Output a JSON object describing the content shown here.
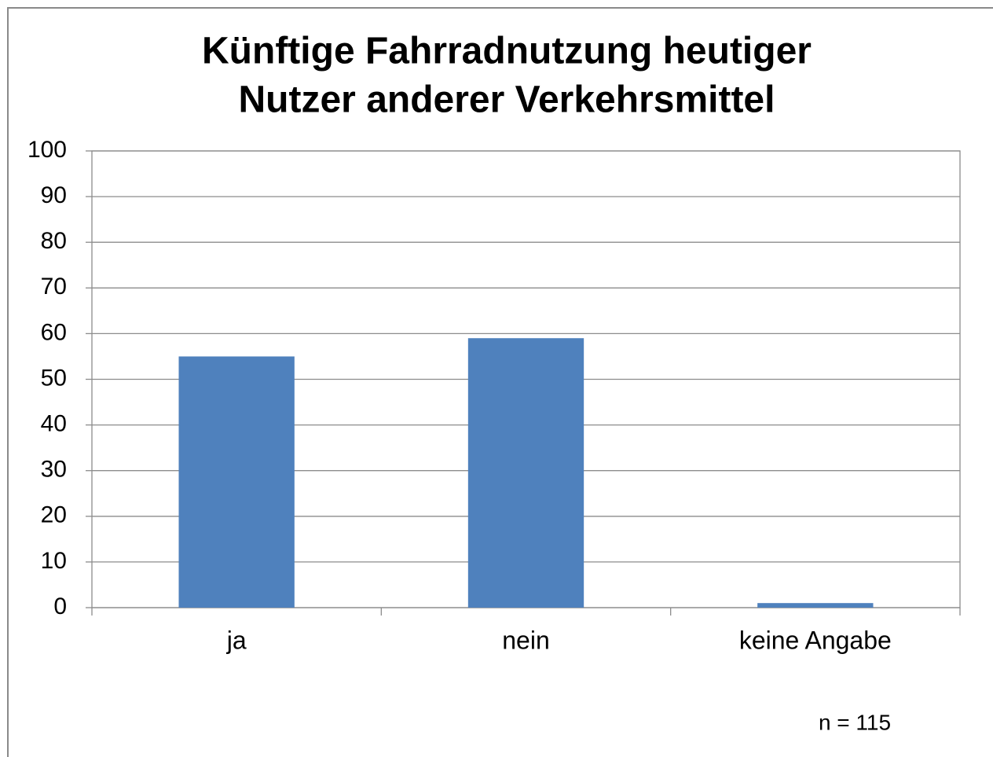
{
  "chart_data": {
    "type": "bar",
    "title": [
      "Künftige Fahrradnutzung heutiger",
      "Nutzer anderer Verkehrsmittel"
    ],
    "categories": [
      "ja",
      "nein",
      "keine Angabe"
    ],
    "values": [
      55,
      59,
      1
    ],
    "color": "#4f81bd",
    "ylim": [
      0,
      100
    ],
    "yticks": [
      0,
      10,
      20,
      30,
      40,
      50,
      60,
      70,
      80,
      90,
      100
    ],
    "grid": true,
    "annotation": "n = 115"
  }
}
